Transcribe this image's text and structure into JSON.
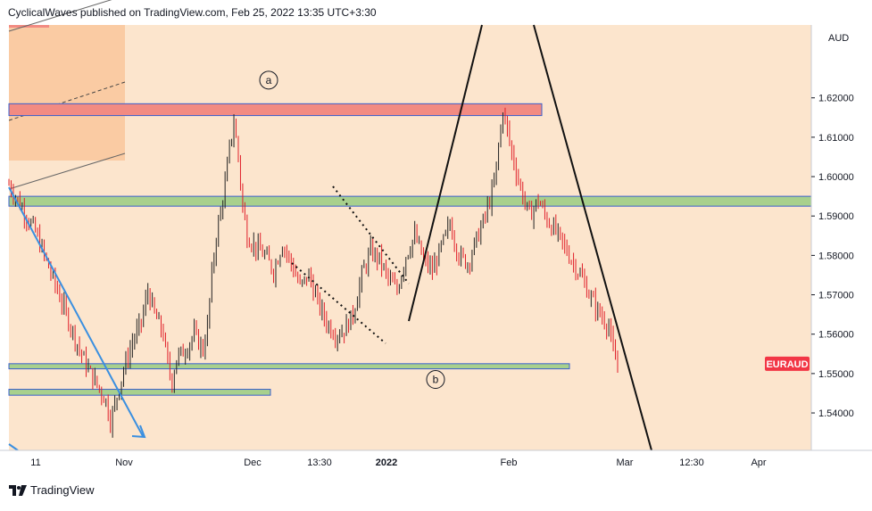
{
  "header": {
    "publisher_line": "CyclicalWaves published on TradingView.com, Feb 25, 2022 13:35 UTC+3:30"
  },
  "footer": {
    "brand": "TradingView"
  },
  "price_axis": {
    "currency": "AUD",
    "symbol_badge": "EURAUD"
  },
  "chart_data": {
    "type": "candlestick",
    "symbol": "EURAUD",
    "currency": "AUD",
    "y_ticks": [
      "1.62000",
      "1.61000",
      "1.60000",
      "1.59000",
      "1.58000",
      "1.57000",
      "1.56000",
      "1.55000",
      "1.54000"
    ],
    "y_range": [
      1.5305,
      1.6385
    ],
    "x_ticks": [
      "11",
      "Nov",
      "Dec",
      "13:30",
      "2022",
      "Feb",
      "Mar",
      "12:30",
      "Apr"
    ],
    "last_price": 1.5525,
    "annotations": [
      {
        "label": "a",
        "price": 1.6245
      },
      {
        "label": "b",
        "price": 1.5485
      }
    ],
    "zones": [
      {
        "color": "#f28b82",
        "low": 1.6155,
        "high": 1.6185
      },
      {
        "color": "#a8d08d",
        "low": 1.5925,
        "high": 1.595
      },
      {
        "color": "#a8d08d",
        "low": 1.5512,
        "high": 1.5525
      },
      {
        "color": "#a8d08d",
        "low": 1.5445,
        "high": 1.546
      }
    ],
    "price_path": [
      [
        0,
        1.598
      ],
      [
        4,
        1.594
      ],
      [
        8,
        1.59
      ],
      [
        12,
        1.586
      ],
      [
        16,
        1.58
      ],
      [
        20,
        1.574
      ],
      [
        24,
        1.568
      ],
      [
        28,
        1.562
      ],
      [
        32,
        1.556
      ],
      [
        36,
        1.551
      ],
      [
        40,
        1.547
      ],
      [
        44,
        1.543
      ],
      [
        46,
        1.538
      ],
      [
        48,
        1.542
      ],
      [
        52,
        1.551
      ],
      [
        56,
        1.558
      ],
      [
        60,
        1.563
      ],
      [
        63,
        1.571
      ],
      [
        66,
        1.565
      ],
      [
        70,
        1.56
      ],
      [
        72,
        1.552
      ],
      [
        74,
        1.548
      ],
      [
        76,
        1.554
      ],
      [
        80,
        1.556
      ],
      [
        84,
        1.56
      ],
      [
        88,
        1.556
      ],
      [
        90,
        1.562
      ],
      [
        92,
        1.575
      ],
      [
        94,
        1.585
      ],
      [
        96,
        1.591
      ],
      [
        98,
        1.598
      ],
      [
        100,
        1.607
      ],
      [
        102,
        1.614
      ],
      [
        104,
        1.605
      ],
      [
        106,
        1.592
      ],
      [
        108,
        1.585
      ],
      [
        112,
        1.582
      ],
      [
        116,
        1.58
      ],
      [
        120,
        1.576
      ],
      [
        124,
        1.583
      ],
      [
        128,
        1.578
      ],
      [
        132,
        1.572
      ],
      [
        136,
        1.575
      ],
      [
        140,
        1.568
      ],
      [
        144,
        1.563
      ],
      [
        148,
        1.56
      ],
      [
        152,
        1.561
      ],
      [
        156,
        1.565
      ],
      [
        160,
        1.575
      ],
      [
        164,
        1.581
      ],
      [
        168,
        1.579
      ],
      [
        172,
        1.574
      ],
      [
        176,
        1.571
      ],
      [
        180,
        1.58
      ],
      [
        184,
        1.585
      ],
      [
        188,
        1.579
      ],
      [
        192,
        1.576
      ],
      [
        196,
        1.582
      ],
      [
        200,
        1.588
      ],
      [
        204,
        1.58
      ],
      [
        208,
        1.578
      ],
      [
        212,
        1.584
      ],
      [
        216,
        1.59
      ],
      [
        220,
        1.598
      ],
      [
        224,
        1.617
      ],
      [
        228,
        1.606
      ],
      [
        232,
        1.597
      ],
      [
        236,
        1.59
      ],
      [
        240,
        1.594
      ],
      [
        244,
        1.589
      ],
      [
        248,
        1.586
      ],
      [
        252,
        1.582
      ],
      [
        256,
        1.578
      ],
      [
        260,
        1.574
      ],
      [
        264,
        1.569
      ],
      [
        268,
        1.565
      ],
      [
        272,
        1.562
      ],
      [
        274,
        1.555
      ],
      [
        276,
        1.552
      ]
    ]
  }
}
